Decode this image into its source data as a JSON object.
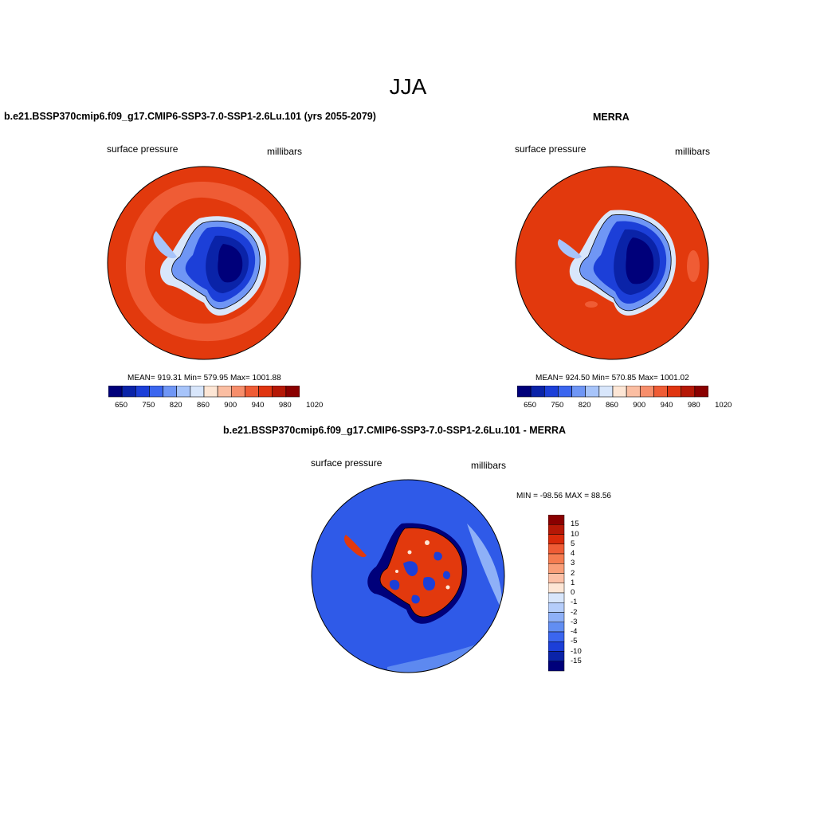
{
  "title": "JJA",
  "panel_left": {
    "title": "b.e21.BSSP370cmip6.f09_g17.CMIP6-SSP3-7.0-SSP1-2.6Lu.101 (yrs 2055-2079)",
    "left_label": "surface pressure",
    "right_label": "millibars",
    "stats": "MEAN= 919.31  Min= 579.95  Max= 1001.88"
  },
  "panel_right": {
    "title": "MERRA",
    "left_label": "surface pressure",
    "right_label": "millibars",
    "stats": "MEAN= 924.50  Min= 570.85  Max= 1001.02"
  },
  "panel_diff": {
    "title": "b.e21.BSSP370cmip6.f09_g17.CMIP6-SSP3-7.0-SSP1-2.6Lu.101 - MERRA",
    "left_label": "surface pressure",
    "right_label": "millibars",
    "stats": "MIN = -98.56 MAX =  88.56"
  },
  "colorbar_abs": {
    "labels": [
      "650",
      "750",
      "820",
      "860",
      "900",
      "940",
      "980",
      "1020"
    ],
    "colors": [
      "#00007a",
      "#0a23a8",
      "#1c3fd8",
      "#3b66ef",
      "#6f96f5",
      "#a7c4fa",
      "#d8e6fb",
      "#fde6d5",
      "#fbbea2",
      "#f78e6b",
      "#ef5c35",
      "#e03510",
      "#b51806",
      "#8a0000"
    ]
  },
  "colorbar_diff": {
    "labels": [
      "15",
      "10",
      "5",
      "4",
      "3",
      "2",
      "1",
      "0",
      "-1",
      "-2",
      "-3",
      "-4",
      "-5",
      "-10",
      "-15"
    ],
    "colors": [
      "#8a0000",
      "#b51806",
      "#d92a0a",
      "#ef5c35",
      "#f57c50",
      "#f99e78",
      "#fcc0a6",
      "#fde6d5",
      "#d8e6fb",
      "#b5cdfa",
      "#8eb0f7",
      "#628ef2",
      "#3b66ef",
      "#1c3fd8",
      "#0a23a8",
      "#00007a"
    ]
  },
  "map_colors": {
    "ocean": "#e2390d",
    "ocean_light": "#ef5c35",
    "ice_edge": "#d8e6fb",
    "diff_ocean": "#2f5ae8",
    "diff_ocean_light": "#5d89f0",
    "diff_pos": "#e2390d"
  }
}
